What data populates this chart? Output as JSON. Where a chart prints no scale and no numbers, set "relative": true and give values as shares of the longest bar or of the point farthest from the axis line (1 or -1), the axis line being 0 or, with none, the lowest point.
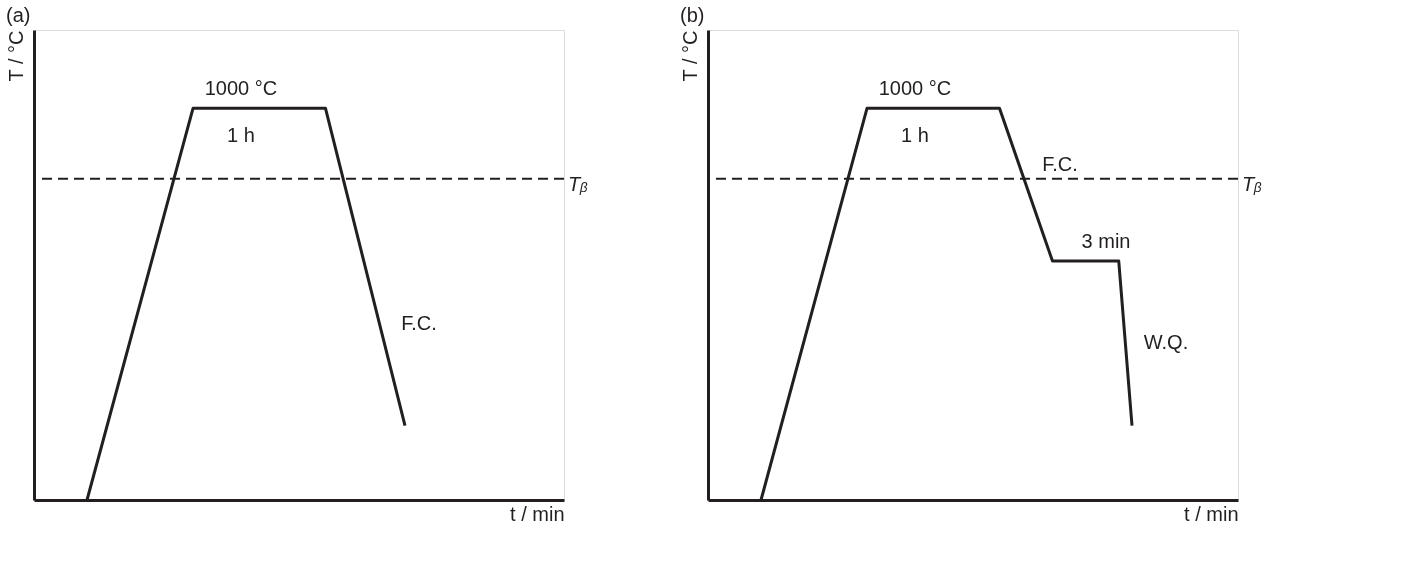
{
  "chart_data": [
    {
      "type": "line",
      "relative": true,
      "title": "(a)",
      "xlabel": "t / min",
      "ylabel": "T / °C",
      "tick_labels": false,
      "grid": false,
      "line_style": "solid",
      "categories": [
        null,
        null,
        null,
        null,
        null,
        null,
        null,
        null,
        null,
        null,
        null,
        null,
        null,
        null,
        null,
        null,
        null,
        null,
        null,
        null,
        null,
        null,
        null,
        null,
        null,
        null,
        null,
        null,
        null,
        null,
        null,
        null,
        null,
        null,
        null,
        null,
        null,
        null,
        null,
        null,
        null
      ],
      "series": [
        {
          "color": "#231f20",
          "values": [
            null,
            null,
            null,
            null,
            0,
            null,
            null,
            null,
            null,
            null,
            null,
            null,
            1,
            null,
            null,
            null,
            null,
            null,
            null,
            null,
            null,
            null,
            1,
            null,
            null,
            null,
            null,
            null,
            0.19,
            null,
            null,
            null,
            null,
            null,
            null,
            null,
            null,
            null,
            null,
            null,
            null
          ]
        }
      ],
      "ref_lines": [
        {
          "axis": "y",
          "value": 0.82,
          "label": "Tᵦ",
          "line_style": "dashed",
          "color": "#231f20"
        }
      ],
      "annotations": [
        "1000 °C",
        "1 h",
        "F.C."
      ]
    },
    {
      "type": "line",
      "relative": true,
      "title": "(b)",
      "xlabel": "t / min",
      "ylabel": "T / °C",
      "tick_labels": false,
      "grid": false,
      "line_style": "solid",
      "categories": [
        null,
        null,
        null,
        null,
        null,
        null,
        null,
        null,
        null,
        null,
        null,
        null,
        null,
        null,
        null,
        null,
        null,
        null,
        null,
        null,
        null,
        null,
        null,
        null,
        null,
        null,
        null,
        null,
        null,
        null,
        null,
        null,
        null,
        null,
        null,
        null,
        null,
        null,
        null,
        null,
        null
      ],
      "series": [
        {
          "color": "#231f20",
          "values": [
            null,
            null,
            null,
            null,
            0,
            null,
            null,
            null,
            null,
            null,
            null,
            null,
            1,
            null,
            null,
            null,
            null,
            null,
            null,
            null,
            null,
            null,
            1,
            null,
            null,
            null,
            0.61,
            null,
            null,
            null,
            null,
            0.61,
            0.19,
            null,
            null,
            null,
            null,
            null,
            null,
            null,
            null
          ]
        }
      ],
      "ref_lines": [
        {
          "axis": "y",
          "value": 0.82,
          "label": "Tᵦ",
          "line_style": "dashed",
          "color": "#231f20"
        }
      ],
      "annotations": [
        "1000 °C",
        "1 h",
        "F.C.",
        "3 min",
        "W.Q."
      ]
    }
  ]
}
